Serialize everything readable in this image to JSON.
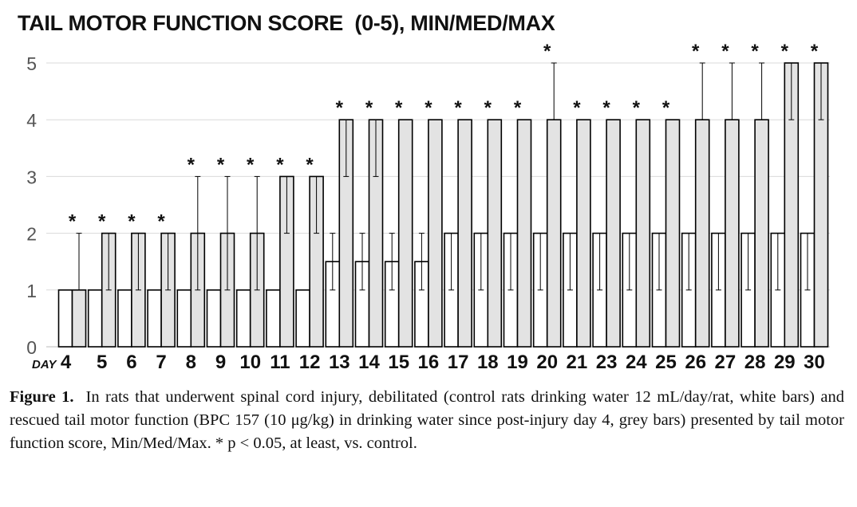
{
  "chart_data": {
    "type": "bar",
    "title": "TAIL MOTOR FUNCTION SCORE  (0-5), MIN/MED/MAX",
    "xlabel": "DAY",
    "ylabel": "",
    "ylim": [
      0,
      5
    ],
    "yticks": [
      "0",
      "1",
      "2",
      "3",
      "4",
      "5"
    ],
    "grid": true,
    "categories": [
      "4",
      "5",
      "6",
      "7",
      "8",
      "9",
      "10",
      "11",
      "12",
      "13",
      "14",
      "15",
      "16",
      "17",
      "18",
      "19",
      "20",
      "21",
      "23",
      "24",
      "25",
      "26",
      "27",
      "28",
      "29",
      "30"
    ],
    "series": [
      {
        "color": "#ffffff",
        "values": [
          1,
          1,
          1,
          1,
          1,
          1,
          1,
          1,
          1,
          1.5,
          1.5,
          1.5,
          1.5,
          2,
          2,
          2,
          2,
          2,
          2,
          2,
          2,
          2,
          2,
          2,
          2,
          2
        ],
        "err_min": [
          1,
          1,
          1,
          1,
          1,
          1,
          1,
          1,
          1,
          1,
          1,
          1,
          1,
          1,
          1,
          1,
          1,
          1,
          1,
          1,
          1,
          1,
          1,
          1,
          1,
          1
        ],
        "err_max": [
          1,
          1,
          1,
          1,
          1,
          1,
          1,
          1,
          1,
          2,
          2,
          2,
          2,
          2,
          2,
          2,
          2,
          2,
          2,
          2,
          2,
          2,
          2,
          2,
          2,
          2
        ]
      },
      {
        "color": "#e3e3e3",
        "values": [
          1,
          2,
          2,
          2,
          2,
          2,
          2,
          3,
          3,
          4,
          4,
          4,
          4,
          4,
          4,
          4,
          4,
          4,
          4,
          4,
          4,
          4,
          4,
          4,
          5,
          5
        ],
        "err_min": [
          1,
          1,
          1,
          1,
          1,
          1,
          1,
          2,
          2,
          3,
          3,
          4,
          4,
          4,
          4,
          4,
          4,
          4,
          4,
          4,
          4,
          4,
          4,
          4,
          4,
          4
        ],
        "err_max": [
          2,
          2,
          2,
          2,
          3,
          3,
          3,
          3,
          3,
          4,
          4,
          4,
          4,
          4,
          4,
          4,
          5,
          4,
          4,
          4,
          4,
          5,
          5,
          5,
          5,
          5
        ]
      }
    ],
    "significance_marker": "*",
    "significant": [
      true,
      true,
      true,
      true,
      true,
      true,
      true,
      true,
      true,
      true,
      true,
      true,
      true,
      true,
      true,
      true,
      true,
      true,
      true,
      true,
      true,
      true,
      true,
      true,
      true,
      true
    ]
  },
  "caption": {
    "label": "Figure 1.",
    "text": "In rats that underwent spinal cord injury, debilitated (control rats drinking water 12 mL/day/rat, white bars) and rescued tail motor function (BPC 157 (10 μg/kg) in drinking water since post-injury day 4, grey bars) presented by tail motor function score, Min/Med/Max. * p < 0.05, at least, vs. control."
  }
}
